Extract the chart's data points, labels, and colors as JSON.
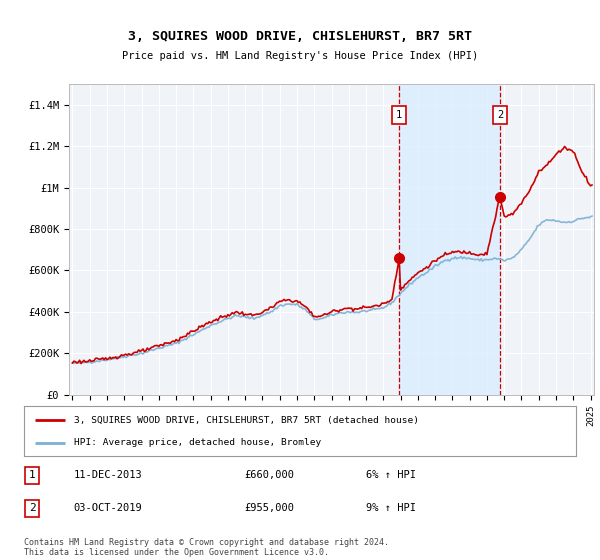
{
  "title": "3, SQUIRES WOOD DRIVE, CHISLEHURST, BR7 5RT",
  "subtitle": "Price paid vs. HM Land Registry's House Price Index (HPI)",
  "ylabel_ticks": [
    "£0",
    "£200K",
    "£400K",
    "£600K",
    "£800K",
    "£1M",
    "£1.2M",
    "£1.4M"
  ],
  "ylabel_vals": [
    0,
    200000,
    400000,
    600000,
    800000,
    1000000,
    1200000,
    1400000
  ],
  "ylim": [
    0,
    1500000
  ],
  "xmin": 1995,
  "xmax": 2025,
  "hpi_color": "#7bafd4",
  "price_color": "#cc0000",
  "purchase1_x": 2013.917,
  "purchase1_y": 660000,
  "purchase2_x": 2019.75,
  "purchase2_y": 955000,
  "legend1": "3, SQUIRES WOOD DRIVE, CHISLEHURST, BR7 5RT (detached house)",
  "legend2": "HPI: Average price, detached house, Bromley",
  "ann1_label": "1",
  "ann1_date": "11-DEC-2013",
  "ann1_price": "£660,000",
  "ann1_hpi": "6% ↑ HPI",
  "ann2_label": "2",
  "ann2_date": "03-OCT-2019",
  "ann2_price": "£955,000",
  "ann2_hpi": "9% ↑ HPI",
  "footer": "Contains HM Land Registry data © Crown copyright and database right 2024.\nThis data is licensed under the Open Government Licence v3.0.",
  "shade_color": "#ddeeff",
  "background_color": "#ffffff",
  "plot_bg_color": "#f0f4f8",
  "grid_color": "#ffffff"
}
